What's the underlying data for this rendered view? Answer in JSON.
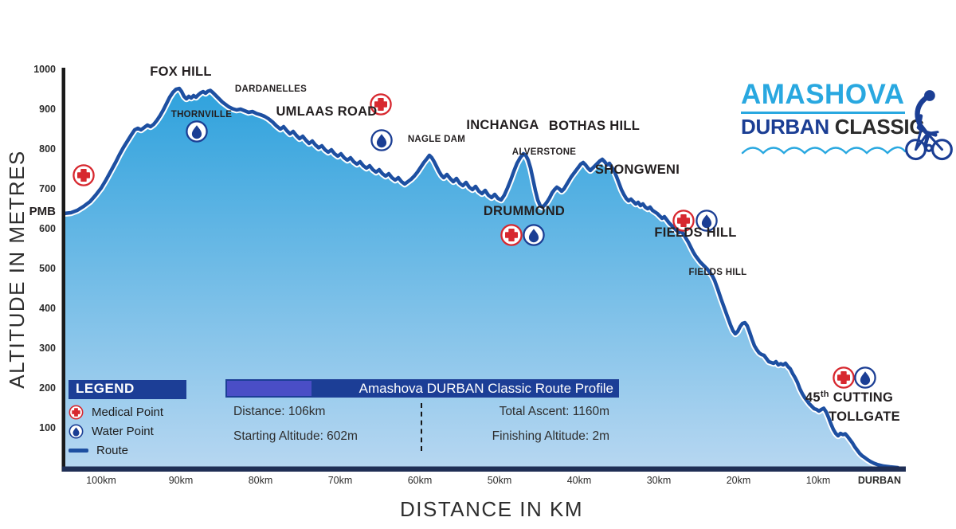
{
  "logo": {
    "title": "AMASHOVA",
    "subtitle_primary": "DURBAN",
    "subtitle_secondary": "CLASSIC"
  },
  "legend": {
    "title": "LEGEND",
    "items": [
      {
        "icon": "medical-icon",
        "label": "Medical Point"
      },
      {
        "icon": "water-icon",
        "label": "Water Point"
      },
      {
        "icon": "route-line-icon",
        "label": "Route"
      }
    ]
  },
  "info_panel": {
    "title": "Amashova DURBAN Classic Route Profile",
    "stats_left": [
      "Distance: 106km",
      "Starting Altitude: 602m"
    ],
    "stats_right": [
      "Total Ascent: 1160m",
      "Finishing Altitude: 2m"
    ]
  },
  "colors": {
    "route_stroke": "#1d4fa1",
    "fill_top": "#2aa0dc",
    "fill_bottom": "#b7d7f1",
    "axis_bottom": "#1f2e55",
    "axis_left": "#1a1a1a",
    "navy": "#1c3e96",
    "accent_indigo": "#4a4ec6",
    "medical_red": "#d7282f",
    "water_navy": "#1b3e94",
    "cyan": "#29a8e0",
    "text_dark": "#231f20",
    "tick_text": "#2b2b2b"
  },
  "chart_data": {
    "type": "area",
    "title": "Amashova DURBAN Classic Route Profile",
    "xlabel": "DISTANCE IN KM",
    "ylabel": "ALTITUDE IN METRES",
    "x_direction": "distance-to-finish, start 106km (PMB) at left, 0km (Durban) at right",
    "xlim": [
      106,
      0
    ],
    "ylim": [
      0,
      1000
    ],
    "grid": false,
    "x_ticks": [
      {
        "km": 100,
        "label": "100km"
      },
      {
        "km": 90,
        "label": "90km"
      },
      {
        "km": 80,
        "label": "80km"
      },
      {
        "km": 70,
        "label": "70km"
      },
      {
        "km": 60,
        "label": "60km"
      },
      {
        "km": 50,
        "label": "50km"
      },
      {
        "km": 40,
        "label": "40km"
      },
      {
        "km": 30,
        "label": "30km"
      },
      {
        "km": 20,
        "label": "20km"
      },
      {
        "km": 10,
        "label": "10km"
      },
      {
        "km": 2.3,
        "label": "DURBAN",
        "bold": true
      }
    ],
    "y_ticks": [
      {
        "m": 1000,
        "label": "1000"
      },
      {
        "m": 900,
        "label": "900"
      },
      {
        "m": 800,
        "label": "800"
      },
      {
        "m": 700,
        "label": "700"
      },
      {
        "m": 600,
        "label": "600"
      },
      {
        "m": 500,
        "label": "500"
      },
      {
        "m": 400,
        "label": "400"
      },
      {
        "m": 300,
        "label": "300"
      },
      {
        "m": 200,
        "label": "200"
      },
      {
        "m": 100,
        "label": "100"
      }
    ],
    "y_extra_label": {
      "label": "PMB",
      "m": 644
    },
    "stats": {
      "distance_km": 106,
      "starting_altitude_m": 602,
      "total_ascent_m": 1160,
      "finishing_altitude_m": 2
    },
    "annotations": [
      {
        "text": "FOX HILL",
        "km": 90.0,
        "m": 984,
        "size": "lg"
      },
      {
        "text": "THORNVILLE",
        "km": 87.4,
        "m": 880,
        "size": "sm"
      },
      {
        "text": "DARDANELLES",
        "km": 78.7,
        "m": 944,
        "size": "sm"
      },
      {
        "text": "UMLAAS ROAD",
        "km": 71.7,
        "m": 884,
        "size": "lg"
      },
      {
        "text": "NAGLE DAM",
        "km": 57.9,
        "m": 818,
        "size": "sm"
      },
      {
        "text": "INCHANGA",
        "km": 49.6,
        "m": 850,
        "size": "lg"
      },
      {
        "text": "ALVERSTONE",
        "km": 44.4,
        "m": 786,
        "size": "sm"
      },
      {
        "text": "BOTHAS HILL",
        "km": 38.1,
        "m": 848,
        "size": "lg"
      },
      {
        "text": "SHONGWENI",
        "km": 32.7,
        "m": 738,
        "size": "lg"
      },
      {
        "text": "DRUMMOND",
        "km": 46.9,
        "m": 634,
        "size": "lg"
      },
      {
        "text": "FIELDS HILL",
        "km": 25.4,
        "m": 580,
        "size": "lg"
      },
      {
        "text": "FIELDS HILL",
        "km": 22.6,
        "m": 484,
        "size": "sm"
      },
      {
        "text": "45",
        "sup": "th",
        "rest": " CUTTING",
        "km": 6.1,
        "m": 166,
        "size": "lg"
      },
      {
        "text": "TOLLGATE",
        "km": 4.2,
        "m": 118,
        "size": "lg"
      }
    ],
    "markers": [
      {
        "type": "medical",
        "km": 102.2,
        "m": 734
      },
      {
        "type": "water",
        "km": 88.0,
        "m": 844
      },
      {
        "type": "medical",
        "km": 64.9,
        "m": 912
      },
      {
        "type": "water",
        "km": 64.8,
        "m": 822
      },
      {
        "type": "medical",
        "km": 48.5,
        "m": 584
      },
      {
        "type": "water",
        "km": 45.7,
        "m": 584
      },
      {
        "type": "medical",
        "km": 26.9,
        "m": 620
      },
      {
        "type": "water",
        "km": 24.0,
        "m": 620
      },
      {
        "type": "medical",
        "km": 6.8,
        "m": 226
      },
      {
        "type": "water",
        "km": 4.1,
        "m": 226
      }
    ],
    "route": [
      [
        104.7,
        638
      ],
      [
        103.8,
        640
      ],
      [
        103,
        646
      ],
      [
        102.2,
        656
      ],
      [
        101.4,
        668
      ],
      [
        100.7,
        684
      ],
      [
        100,
        702
      ],
      [
        99.4,
        722
      ],
      [
        98.8,
        744
      ],
      [
        98.2,
        766
      ],
      [
        97.7,
        786
      ],
      [
        97.2,
        804
      ],
      [
        96.7,
        820
      ],
      [
        96.2,
        836
      ],
      [
        95.8,
        848
      ],
      [
        95.4,
        852
      ],
      [
        95,
        848
      ],
      [
        94.6,
        854
      ],
      [
        94.2,
        860
      ],
      [
        93.8,
        856
      ],
      [
        93.4,
        862
      ],
      [
        93,
        872
      ],
      [
        92.6,
        884
      ],
      [
        92.2,
        898
      ],
      [
        91.8,
        914
      ],
      [
        91.4,
        930
      ],
      [
        91,
        942
      ],
      [
        90.6,
        950
      ],
      [
        90.2,
        952
      ],
      [
        89.9,
        944
      ],
      [
        89.6,
        932
      ],
      [
        89.3,
        926
      ],
      [
        89,
        932
      ],
      [
        88.7,
        928
      ],
      [
        88.4,
        934
      ],
      [
        88.1,
        930
      ],
      [
        87.8,
        936
      ],
      [
        87.5,
        941
      ],
      [
        87.2,
        944
      ],
      [
        86.9,
        940
      ],
      [
        86.6,
        945
      ],
      [
        86.3,
        947
      ],
      [
        86,
        942
      ],
      [
        85.6,
        934
      ],
      [
        85.2,
        926
      ],
      [
        84.8,
        918
      ],
      [
        84.4,
        912
      ],
      [
        84,
        906
      ],
      [
        83.5,
        901
      ],
      [
        83,
        898
      ],
      [
        82.5,
        900
      ],
      [
        82,
        896
      ],
      [
        81.5,
        892
      ],
      [
        81,
        894
      ],
      [
        80.5,
        889
      ],
      [
        80,
        886
      ],
      [
        79.5,
        882
      ],
      [
        79,
        876
      ],
      [
        78.5,
        868
      ],
      [
        78,
        858
      ],
      [
        77.5,
        850
      ],
      [
        77.1,
        856
      ],
      [
        76.7,
        846
      ],
      [
        76.3,
        838
      ],
      [
        75.9,
        844
      ],
      [
        75.5,
        834
      ],
      [
        75.1,
        826
      ],
      [
        74.7,
        832
      ],
      [
        74.3,
        822
      ],
      [
        73.9,
        814
      ],
      [
        73.5,
        820
      ],
      [
        73.1,
        810
      ],
      [
        72.7,
        803
      ],
      [
        72.3,
        808
      ],
      [
        71.9,
        798
      ],
      [
        71.5,
        792
      ],
      [
        71.1,
        798
      ],
      [
        70.7,
        788
      ],
      [
        70.3,
        782
      ],
      [
        69.9,
        788
      ],
      [
        69.5,
        778
      ],
      [
        69.1,
        772
      ],
      [
        68.7,
        778
      ],
      [
        68.3,
        768
      ],
      [
        67.9,
        762
      ],
      [
        67.5,
        768
      ],
      [
        67.1,
        758
      ],
      [
        66.7,
        752
      ],
      [
        66.3,
        758
      ],
      [
        65.9,
        748
      ],
      [
        65.5,
        742
      ],
      [
        65.1,
        748
      ],
      [
        64.7,
        738
      ],
      [
        64.3,
        732
      ],
      [
        63.9,
        738
      ],
      [
        63.5,
        728
      ],
      [
        63.1,
        722
      ],
      [
        62.7,
        728
      ],
      [
        62.3,
        718
      ],
      [
        61.9,
        712
      ],
      [
        61.5,
        718
      ],
      [
        61.1,
        724
      ],
      [
        60.7,
        732
      ],
      [
        60.3,
        742
      ],
      [
        59.9,
        754
      ],
      [
        59.5,
        766
      ],
      [
        59.1,
        776
      ],
      [
        58.8,
        784
      ],
      [
        58.5,
        778
      ],
      [
        58.2,
        768
      ],
      [
        57.9,
        756
      ],
      [
        57.6,
        744
      ],
      [
        57.3,
        734
      ],
      [
        57,
        728
      ],
      [
        56.6,
        736
      ],
      [
        56.2,
        726
      ],
      [
        55.8,
        718
      ],
      [
        55.4,
        726
      ],
      [
        55,
        714
      ],
      [
        54.6,
        708
      ],
      [
        54.2,
        716
      ],
      [
        53.8,
        704
      ],
      [
        53.4,
        698
      ],
      [
        53,
        706
      ],
      [
        52.6,
        694
      ],
      [
        52.2,
        688
      ],
      [
        51.8,
        696
      ],
      [
        51.4,
        684
      ],
      [
        51,
        678
      ],
      [
        50.6,
        686
      ],
      [
        50.2,
        676
      ],
      [
        49.8,
        672
      ],
      [
        49.4,
        684
      ],
      [
        49,
        702
      ],
      [
        48.6,
        722
      ],
      [
        48.2,
        744
      ],
      [
        47.8,
        764
      ],
      [
        47.4,
        778
      ],
      [
        47,
        788
      ],
      [
        46.7,
        784
      ],
      [
        46.4,
        772
      ],
      [
        46.1,
        752
      ],
      [
        45.8,
        724
      ],
      [
        45.5,
        696
      ],
      [
        45.2,
        672
      ],
      [
        44.9,
        658
      ],
      [
        44.6,
        654
      ],
      [
        44.3,
        660
      ],
      [
        44,
        668
      ],
      [
        43.7,
        678
      ],
      [
        43.4,
        690
      ],
      [
        43.1,
        698
      ],
      [
        42.8,
        704
      ],
      [
        42.5,
        700
      ],
      [
        42.2,
        694
      ],
      [
        41.9,
        700
      ],
      [
        41.6,
        710
      ],
      [
        41.3,
        720
      ],
      [
        41,
        730
      ],
      [
        40.7,
        738
      ],
      [
        40.4,
        746
      ],
      [
        40.1,
        754
      ],
      [
        39.8,
        762
      ],
      [
        39.5,
        766
      ],
      [
        39.2,
        760
      ],
      [
        38.9,
        752
      ],
      [
        38.6,
        746
      ],
      [
        38.3,
        752
      ],
      [
        38,
        758
      ],
      [
        37.7,
        764
      ],
      [
        37.4,
        770
      ],
      [
        37.1,
        774
      ],
      [
        36.8,
        768
      ],
      [
        36.5,
        760
      ],
      [
        36.2,
        764
      ],
      [
        35.9,
        754
      ],
      [
        35.6,
        744
      ],
      [
        35.3,
        730
      ],
      [
        35,
        714
      ],
      [
        34.7,
        698
      ],
      [
        34.4,
        686
      ],
      [
        34.1,
        676
      ],
      [
        33.8,
        670
      ],
      [
        33.5,
        674
      ],
      [
        33.2,
        668
      ],
      [
        32.9,
        662
      ],
      [
        32.6,
        666
      ],
      [
        32.3,
        658
      ],
      [
        32,
        662
      ],
      [
        31.7,
        654
      ],
      [
        31.4,
        650
      ],
      [
        31.1,
        654
      ],
      [
        30.8,
        646
      ],
      [
        30.5,
        642
      ],
      [
        30.2,
        638
      ],
      [
        29.9,
        632
      ],
      [
        29.6,
        626
      ],
      [
        29.3,
        630
      ],
      [
        29,
        622
      ],
      [
        28.7,
        614
      ],
      [
        28.4,
        608
      ],
      [
        28.1,
        602
      ],
      [
        27.8,
        596
      ],
      [
        27.5,
        590
      ],
      [
        27.2,
        594
      ],
      [
        26.9,
        586
      ],
      [
        26.6,
        576
      ],
      [
        26.3,
        566
      ],
      [
        26,
        554
      ],
      [
        25.7,
        542
      ],
      [
        25.4,
        532
      ],
      [
        25.1,
        524
      ],
      [
        24.8,
        516
      ],
      [
        24.5,
        510
      ],
      [
        24.2,
        504
      ],
      [
        23.9,
        498
      ],
      [
        23.6,
        490
      ],
      [
        23.3,
        482
      ],
      [
        23,
        470
      ],
      [
        22.6,
        448
      ],
      [
        22.2,
        424
      ],
      [
        21.8,
        402
      ],
      [
        21.4,
        380
      ],
      [
        21,
        358
      ],
      [
        20.7,
        344
      ],
      [
        20.4,
        336
      ],
      [
        20.1,
        342
      ],
      [
        19.8,
        354
      ],
      [
        19.5,
        362
      ],
      [
        19.2,
        364
      ],
      [
        18.9,
        356
      ],
      [
        18.6,
        340
      ],
      [
        18.3,
        322
      ],
      [
        18,
        306
      ],
      [
        17.7,
        296
      ],
      [
        17.4,
        288
      ],
      [
        17.1,
        284
      ],
      [
        16.8,
        282
      ],
      [
        16.5,
        274
      ],
      [
        16.2,
        266
      ],
      [
        15.9,
        264
      ],
      [
        15.6,
        262
      ],
      [
        15.3,
        266
      ],
      [
        15,
        258
      ],
      [
        14.7,
        261
      ],
      [
        14.4,
        258
      ],
      [
        14.1,
        262
      ],
      [
        13.8,
        254
      ],
      [
        13.5,
        248
      ],
      [
        13.2,
        236
      ],
      [
        12.9,
        226
      ],
      [
        12.6,
        214
      ],
      [
        12.3,
        198
      ],
      [
        12,
        186
      ],
      [
        11.7,
        176
      ],
      [
        11.4,
        168
      ],
      [
        11.1,
        160
      ],
      [
        10.8,
        154
      ],
      [
        10.5,
        148
      ],
      [
        10.2,
        146
      ],
      [
        9.9,
        142
      ],
      [
        9.6,
        146
      ],
      [
        9.3,
        149
      ],
      [
        9,
        140
      ],
      [
        8.7,
        126
      ],
      [
        8.4,
        110
      ],
      [
        8.1,
        96
      ],
      [
        7.8,
        86
      ],
      [
        7.5,
        80
      ],
      [
        7.2,
        86
      ],
      [
        6.9,
        83
      ],
      [
        6.6,
        85
      ],
      [
        6.3,
        78
      ],
      [
        6,
        70
      ],
      [
        5.7,
        62
      ],
      [
        5.4,
        52
      ],
      [
        5.1,
        44
      ],
      [
        4.8,
        36
      ],
      [
        4.5,
        30
      ],
      [
        4.2,
        26
      ],
      [
        3.8,
        20
      ],
      [
        3.4,
        15
      ],
      [
        3,
        11
      ],
      [
        2.6,
        8
      ],
      [
        2.2,
        6
      ],
      [
        1.8,
        4
      ],
      [
        1.4,
        3
      ],
      [
        1,
        2
      ],
      [
        0.5,
        1
      ],
      [
        0,
        0
      ]
    ]
  }
}
